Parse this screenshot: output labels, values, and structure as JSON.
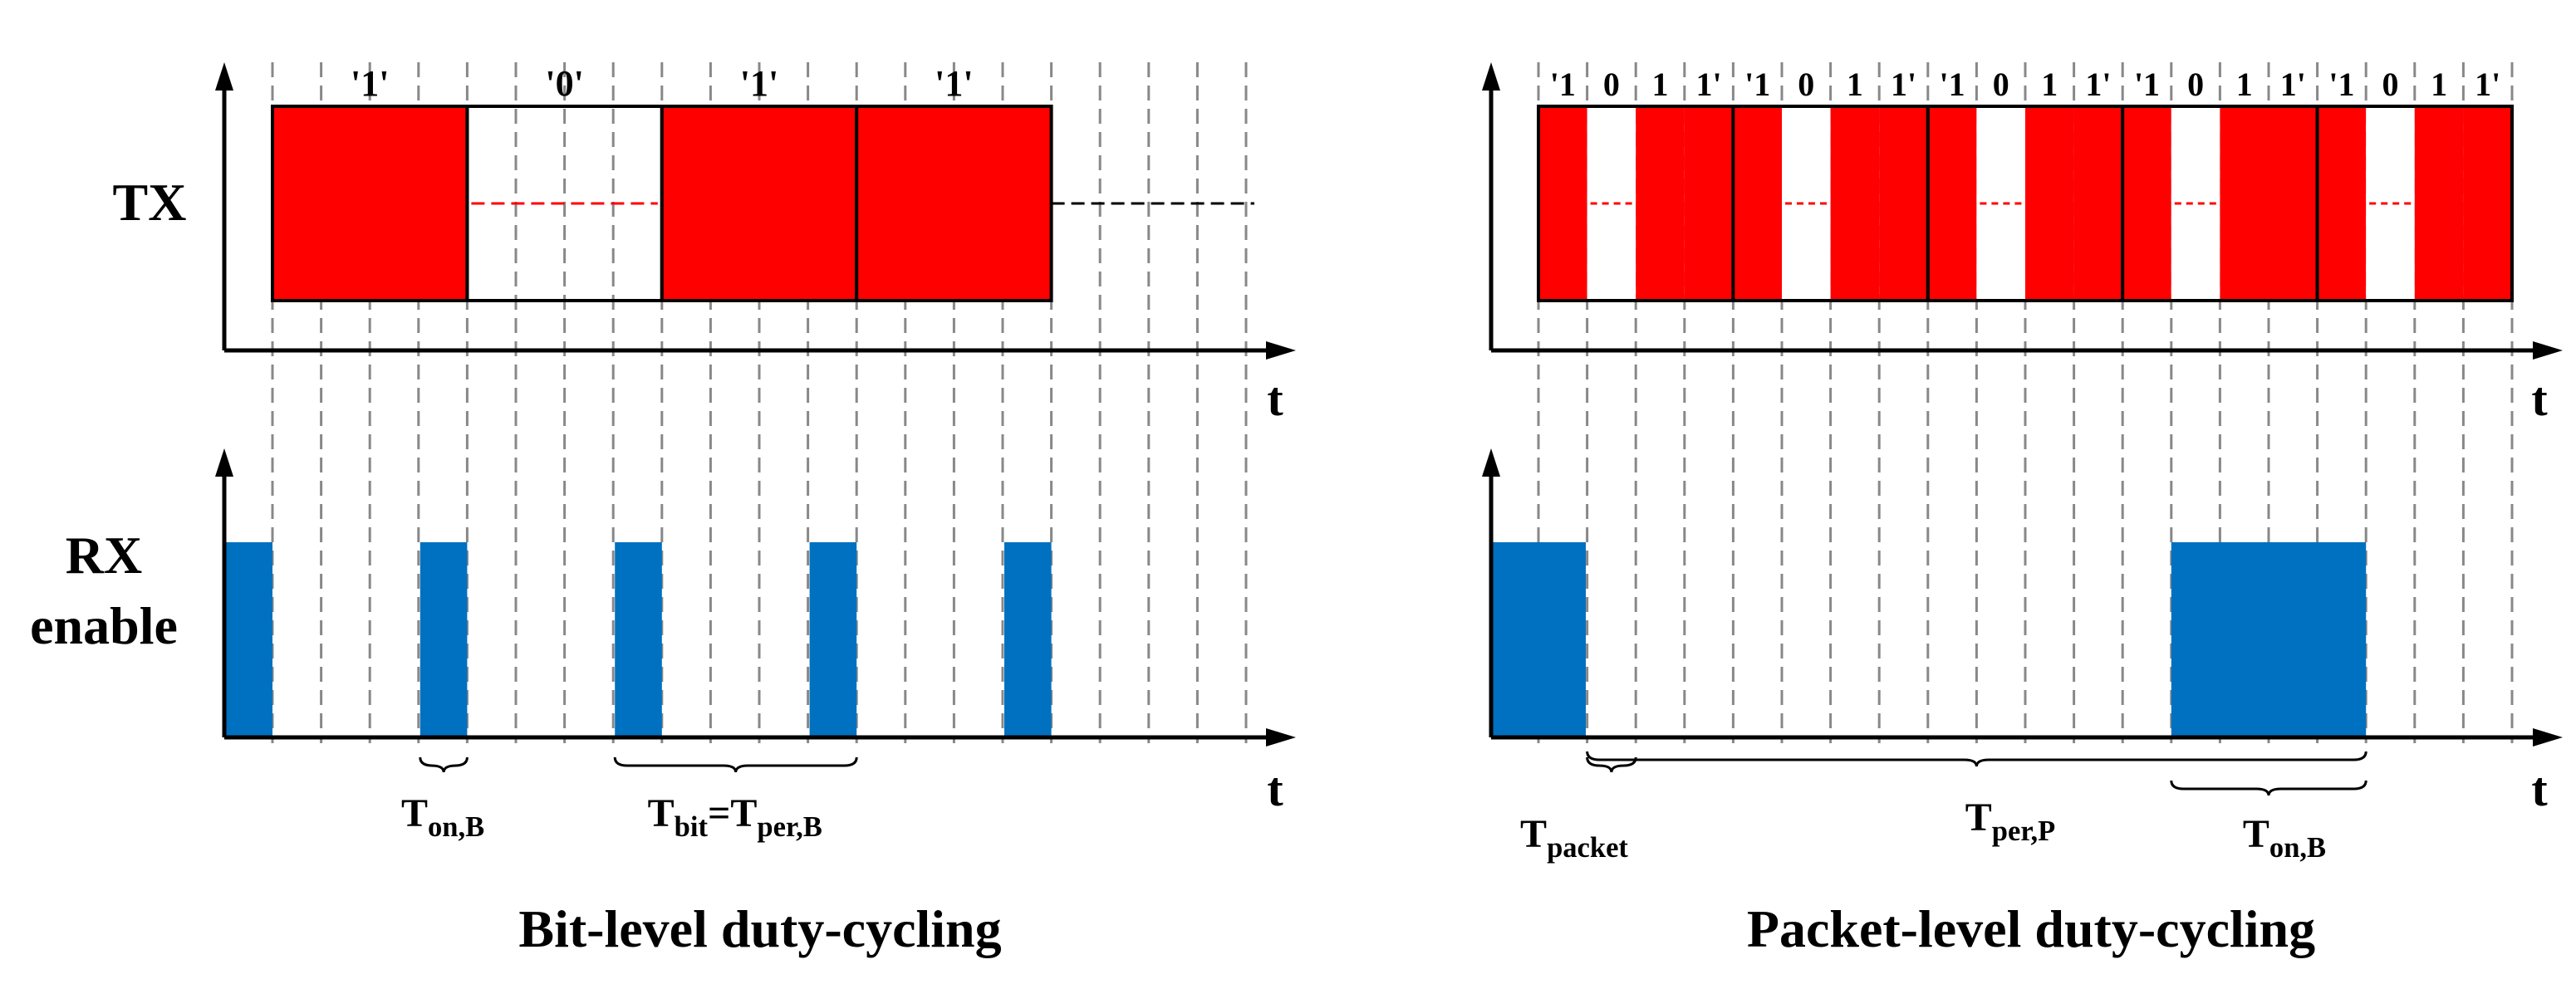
{
  "colors": {
    "tx": "#FF0000",
    "rx": "#0070C0",
    "axis": "#000000",
    "grid": "#888888"
  },
  "axis_label_t": "t",
  "row_labels": {
    "tx": "TX",
    "rx_line1": "RX",
    "rx_line2": "enable"
  },
  "bit_level": {
    "title": "Bit-level duty-cycling",
    "bits": [
      "'1'",
      "'0'",
      "'1'",
      "'1'"
    ],
    "bit_values": [
      1,
      0,
      1,
      1
    ],
    "slots_per_bit": 4,
    "total_slots": 21,
    "rx_pulse_slots": [
      0,
      4,
      8,
      12,
      16
    ],
    "t_on_label": {
      "main": "T",
      "sub": "on,B"
    },
    "t_bit_label": {
      "a_main": "T",
      "a_sub": "bit",
      "eq": "=",
      "b_main": "T",
      "b_sub": "per,B"
    }
  },
  "packet_level": {
    "title": "Packet-level duty-cycling",
    "packet_symbols": [
      "'1",
      "0",
      "1",
      "1'"
    ],
    "packet_bits": [
      1,
      0,
      1,
      1
    ],
    "packet_count": 5,
    "total_slots": 21,
    "rx_pulse_slots": [
      [
        0,
        2
      ],
      [
        14,
        18
      ]
    ],
    "t_packet_label": {
      "main": "T",
      "sub": "packet"
    },
    "t_per_label": {
      "main": "T",
      "sub": "per,P"
    },
    "t_on_label": {
      "main": "T",
      "sub": "on,B"
    }
  }
}
